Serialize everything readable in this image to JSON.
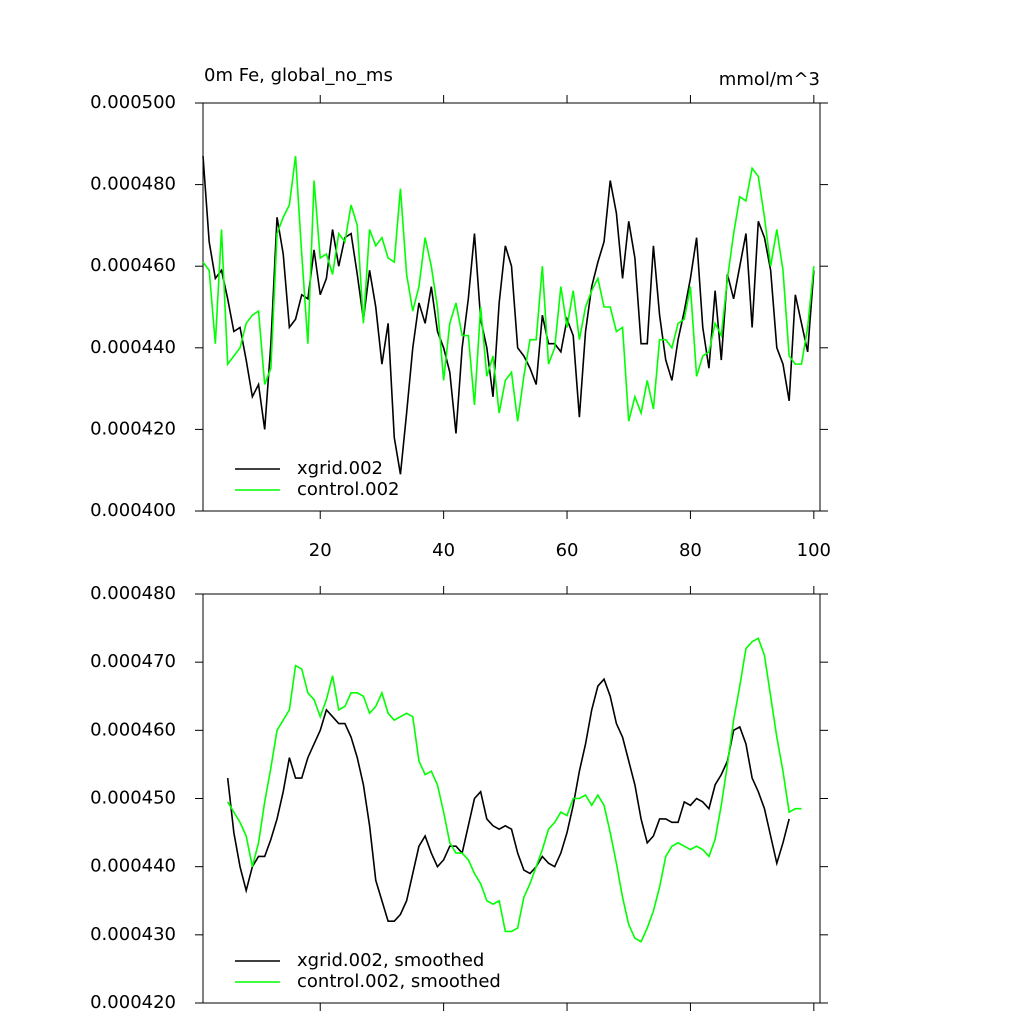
{
  "chart_data": [
    {
      "type": "line",
      "title": "0m Fe, global_no_ms",
      "units_label": "mmol/m^3",
      "x": [
        1,
        2,
        3,
        4,
        5,
        6,
        7,
        8,
        9,
        10,
        11,
        12,
        13,
        14,
        15,
        16,
        17,
        18,
        19,
        20,
        21,
        22,
        23,
        24,
        25,
        26,
        27,
        28,
        29,
        30,
        31,
        32,
        33,
        34,
        35,
        36,
        37,
        38,
        39,
        40,
        41,
        42,
        43,
        44,
        45,
        46,
        47,
        48,
        49,
        50,
        51,
        52,
        53,
        54,
        55,
        56,
        57,
        58,
        59,
        60,
        61,
        62,
        63,
        64,
        65,
        66,
        67,
        68,
        69,
        70,
        71,
        72,
        73,
        74,
        75,
        76,
        77,
        78,
        79,
        80,
        81,
        82,
        83,
        84,
        85,
        86,
        87,
        88,
        89,
        90,
        91,
        92,
        93,
        94,
        95,
        96,
        97,
        98,
        99,
        100
      ],
      "xlim": [
        1,
        101
      ],
      "xticks": [
        20,
        40,
        60,
        80,
        100
      ],
      "show_xtick_labels": true,
      "ylim": [
        0.0004,
        0.0005
      ],
      "yticks": [
        {
          "value": 0.0004,
          "label": "0.000400"
        },
        {
          "value": 0.00042,
          "label": "0.000420"
        },
        {
          "value": 0.00044,
          "label": "0.000440"
        },
        {
          "value": 0.00046,
          "label": "0.000460"
        },
        {
          "value": 0.00048,
          "label": "0.000480"
        },
        {
          "value": 0.0005,
          "label": "0.000500"
        }
      ],
      "legend": "lower left",
      "series": [
        {
          "name": "xgrid.002",
          "color": "#000000",
          "values": [
            0.000487,
            0.000466,
            0.000457,
            0.000459,
            0.000452,
            0.000444,
            0.000445,
            0.000437,
            0.000428,
            0.000431,
            0.00042,
            0.000441,
            0.000472,
            0.000463,
            0.000445,
            0.000447,
            0.000453,
            0.000452,
            0.000464,
            0.000453,
            0.000457,
            0.000469,
            0.00046,
            0.000467,
            0.000468,
            0.000458,
            0.000447,
            0.000459,
            0.00045,
            0.000436,
            0.000446,
            0.000418,
            0.000409,
            0.000424,
            0.00044,
            0.000451,
            0.000446,
            0.000455,
            0.000444,
            0.00044,
            0.000434,
            0.000419,
            0.00044,
            0.000452,
            0.000468,
            0.000447,
            0.00044,
            0.000428,
            0.000451,
            0.000465,
            0.00046,
            0.00044,
            0.000438,
            0.000435,
            0.000431,
            0.000448,
            0.000441,
            0.000441,
            0.000439,
            0.000447,
            0.000443,
            0.000423,
            0.000444,
            0.000455,
            0.000461,
            0.000466,
            0.000481,
            0.000473,
            0.000457,
            0.000471,
            0.000462,
            0.000441,
            0.000441,
            0.000465,
            0.000448,
            0.000437,
            0.000432,
            0.000442,
            0.000449,
            0.000457,
            0.000467,
            0.000445,
            0.000435,
            0.000454,
            0.000437,
            0.000458,
            0.000452,
            0.00046,
            0.000468,
            0.000445,
            0.000471,
            0.000467,
            0.000459,
            0.00044,
            0.000436,
            0.000427,
            0.000453,
            0.000446,
            0.000439,
            0.000459
          ]
        },
        {
          "name": "control.002",
          "color": "#00ff00",
          "values": [
            0.000461,
            0.000459,
            0.000441,
            0.000469,
            0.000436,
            0.000438,
            0.00044,
            0.000446,
            0.000448,
            0.000449,
            0.000431,
            0.000435,
            0.000468,
            0.000472,
            0.000475,
            0.000487,
            0.000463,
            0.000441,
            0.000481,
            0.000462,
            0.000463,
            0.000458,
            0.000468,
            0.000466,
            0.000475,
            0.00047,
            0.000446,
            0.000469,
            0.000465,
            0.000467,
            0.000462,
            0.000461,
            0.000479,
            0.000458,
            0.000449,
            0.000455,
            0.000467,
            0.00046,
            0.00045,
            0.000432,
            0.000446,
            0.000451,
            0.000443,
            0.000443,
            0.000426,
            0.00045,
            0.000433,
            0.000438,
            0.000424,
            0.000432,
            0.000434,
            0.000422,
            0.000433,
            0.000442,
            0.000442,
            0.00046,
            0.000436,
            0.00044,
            0.000455,
            0.000445,
            0.000454,
            0.000442,
            0.00045,
            0.000454,
            0.000457,
            0.00045,
            0.00045,
            0.000444,
            0.000445,
            0.000422,
            0.000428,
            0.000424,
            0.000432,
            0.000425,
            0.000442,
            0.000442,
            0.00044,
            0.000446,
            0.000447,
            0.000455,
            0.000433,
            0.000438,
            0.000439,
            0.000446,
            0.000443,
            0.000457,
            0.000468,
            0.000477,
            0.000476,
            0.000484,
            0.000482,
            0.000472,
            0.00046,
            0.000469,
            0.000459,
            0.000438,
            0.000436,
            0.000436,
            0.000445,
            0.00046
          ]
        }
      ]
    },
    {
      "type": "line",
      "x": [
        1,
        2,
        3,
        4,
        5,
        6,
        7,
        8,
        9,
        10,
        11,
        12,
        13,
        14,
        15,
        16,
        17,
        18,
        19,
        20,
        21,
        22,
        23,
        24,
        25,
        26,
        27,
        28,
        29,
        30,
        31,
        32,
        33,
        34,
        35,
        36,
        37,
        38,
        39,
        40,
        41,
        42,
        43,
        44,
        45,
        46,
        47,
        48,
        49,
        50,
        51,
        52,
        53,
        54,
        55,
        56,
        57,
        58,
        59,
        60,
        61,
        62,
        63,
        64,
        65,
        66,
        67,
        68,
        69,
        70,
        71,
        72,
        73,
        74,
        75,
        76,
        77,
        78,
        79,
        80,
        81,
        82,
        83,
        84,
        85,
        86,
        87,
        88,
        89,
        90,
        91,
        92,
        93,
        94,
        95,
        96,
        97,
        98,
        99,
        100
      ],
      "xlim": [
        1,
        101
      ],
      "xticks": [
        20,
        40,
        60,
        80,
        100
      ],
      "show_xtick_labels": false,
      "ylim": [
        0.00042,
        0.00048
      ],
      "yticks": [
        {
          "value": 0.00042,
          "label": "0.000420"
        },
        {
          "value": 0.00043,
          "label": "0.000430"
        },
        {
          "value": 0.00044,
          "label": "0.000440"
        },
        {
          "value": 0.00045,
          "label": "0.000450"
        },
        {
          "value": 0.00046,
          "label": "0.000460"
        },
        {
          "value": 0.00047,
          "label": "0.000470"
        },
        {
          "value": 0.00048,
          "label": "0.000480"
        }
      ],
      "legend": "lower left",
      "series": [
        {
          "name": "xgrid.002, smoothed",
          "color": "#000000",
          "values": [
            null,
            null,
            null,
            null,
            0.000453,
            0.000445,
            0.00044,
            0.0004365,
            0.00044,
            0.0004415,
            0.0004415,
            0.000444,
            0.000447,
            0.000451,
            0.000456,
            0.000453,
            0.000453,
            0.000456,
            0.000458,
            0.00046,
            0.000463,
            0.000462,
            0.000461,
            0.000461,
            0.000459,
            0.000456,
            0.000452,
            0.000446,
            0.000438,
            0.000435,
            0.000432,
            0.000432,
            0.000433,
            0.000435,
            0.000439,
            0.000443,
            0.0004445,
            0.000442,
            0.00044,
            0.000441,
            0.000443,
            0.000443,
            0.000442,
            0.000446,
            0.00045,
            0.000451,
            0.000447,
            0.000446,
            0.0004455,
            0.000446,
            0.0004455,
            0.000442,
            0.0004395,
            0.000439,
            0.00044,
            0.0004415,
            0.0004405,
            0.00044,
            0.000442,
            0.000445,
            0.000449,
            0.000454,
            0.000458,
            0.000463,
            0.0004665,
            0.0004675,
            0.000465,
            0.000461,
            0.000459,
            0.0004555,
            0.000452,
            0.000447,
            0.0004435,
            0.0004445,
            0.000447,
            0.000447,
            0.0004465,
            0.0004465,
            0.0004495,
            0.000449,
            0.00045,
            0.0004495,
            0.0004485,
            0.000452,
            0.0004535,
            0.0004555,
            0.00046,
            0.0004605,
            0.000458,
            0.000453,
            0.000451,
            0.0004485,
            0.0004445,
            0.0004405,
            0.0004435,
            0.000447,
            null,
            null,
            null,
            null
          ]
        },
        {
          "name": "control.002, smoothed",
          "color": "#00ff00",
          "values": [
            null,
            null,
            null,
            null,
            0.0004495,
            0.000448,
            0.0004465,
            0.0004445,
            0.00044,
            0.0004435,
            0.0004495,
            0.0004545,
            0.00046,
            0.0004615,
            0.000463,
            0.0004695,
            0.000469,
            0.0004655,
            0.0004645,
            0.000462,
            0.0004645,
            0.000468,
            0.000463,
            0.0004635,
            0.0004655,
            0.0004655,
            0.000465,
            0.0004625,
            0.0004635,
            0.0004655,
            0.0004625,
            0.0004615,
            0.000462,
            0.0004625,
            0.000462,
            0.0004555,
            0.0004535,
            0.000454,
            0.000452,
            0.000448,
            0.0004435,
            0.000442,
            0.000442,
            0.000441,
            0.000439,
            0.0004375,
            0.000435,
            0.0004345,
            0.000435,
            0.0004305,
            0.0004305,
            0.000431,
            0.0004355,
            0.0004375,
            0.00044,
            0.0004425,
            0.0004455,
            0.0004465,
            0.000448,
            0.0004475,
            0.00045,
            0.00045,
            0.0004505,
            0.000449,
            0.0004505,
            0.000449,
            0.000445,
            0.0004405,
            0.0004355,
            0.0004315,
            0.0004295,
            0.000429,
            0.000431,
            0.0004335,
            0.000437,
            0.0004415,
            0.000443,
            0.0004435,
            0.000443,
            0.0004425,
            0.000443,
            0.0004425,
            0.0004415,
            0.000444,
            0.000449,
            0.000455,
            0.0004615,
            0.0004665,
            0.000472,
            0.000473,
            0.0004735,
            0.000471,
            0.000465,
            0.000459,
            0.000454,
            0.000448,
            0.0004485,
            0.0004485,
            null,
            null
          ]
        }
      ]
    }
  ]
}
